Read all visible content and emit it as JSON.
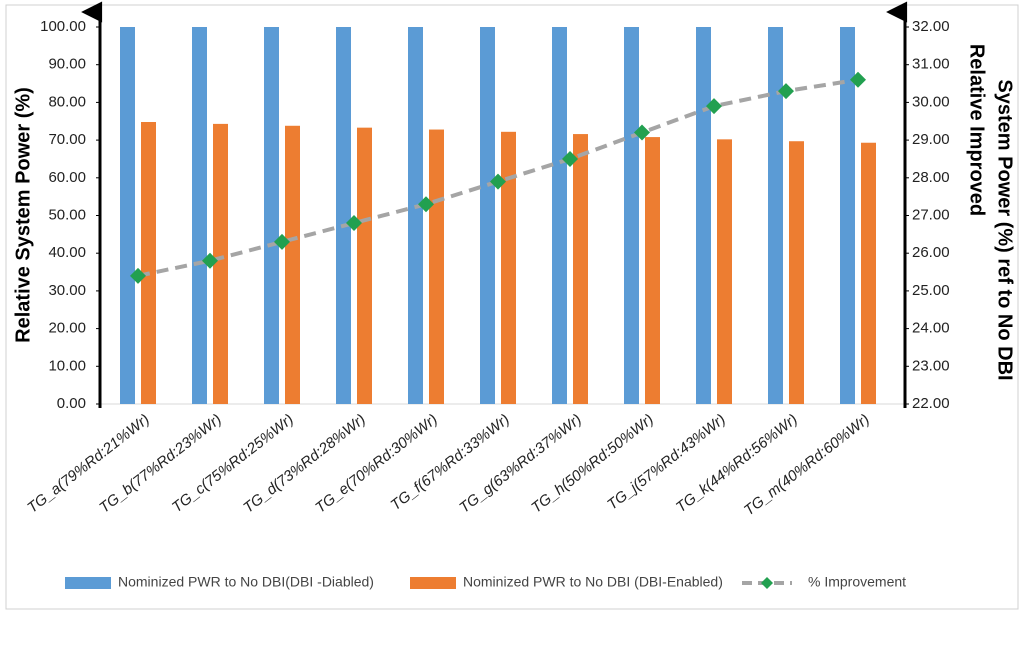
{
  "chart_data": {
    "type": "bar-line",
    "ylabel": "Relative System Power (%)",
    "y2label": [
      "Relative Improved",
      "System Power (%) ref to  No DBI"
    ],
    "categories": [
      "TG_a(79%Rd:21%Wr)",
      "TG_b(77%Rd:23%Wr)",
      "TG_c(75%Rd:25%Wr)",
      "TG_d(73%Rd:28%Wr)",
      "TG_e(70%Rd:30%Wr)",
      "TG_f(67%Rd:33%Wr)",
      "TG_g(63%Rd:37%Wr)",
      "TG_h(50%Rd:50%Wr)",
      "TG_j(57%Rd:43%Wr)",
      "TG_k(44%Rd:56%Wr)",
      "TG_m(40%Rd:60%Wr)"
    ],
    "series": [
      {
        "name": "Nominized PWR to No DBI(DBI -Diabled)",
        "type": "bar",
        "color": "#5b9bd5",
        "values": [
          100,
          100,
          100,
          100,
          100,
          100,
          100,
          100,
          100,
          100,
          100
        ]
      },
      {
        "name": "Nominized PWR to No DBI (DBI-Enabled)",
        "type": "bar",
        "color": "#ed7d31",
        "values": [
          74.8,
          74.3,
          73.8,
          73.3,
          72.8,
          72.2,
          71.6,
          70.8,
          70.2,
          69.7,
          69.3
        ]
      },
      {
        "name": "% Improvement",
        "type": "line",
        "axis": "y2",
        "color": "#a5a5a5",
        "marker_color": "#22a050",
        "values": [
          25.4,
          25.8,
          26.3,
          26.8,
          27.3,
          27.9,
          28.5,
          29.2,
          29.9,
          30.3,
          30.6
        ]
      }
    ],
    "ylim": [
      0,
      100
    ],
    "yticks": [
      {
        "value": 0,
        "label": "0.00"
      },
      {
        "value": 10,
        "label": "10.00"
      },
      {
        "value": 20,
        "label": "20.00"
      },
      {
        "value": 30,
        "label": "30.00"
      },
      {
        "value": 40,
        "label": "40.00"
      },
      {
        "value": 50,
        "label": "50.00"
      },
      {
        "value": 60,
        "label": "60.00"
      },
      {
        "value": 70,
        "label": "70.00"
      },
      {
        "value": 80,
        "label": "80.00"
      },
      {
        "value": 90,
        "label": "90.00"
      },
      {
        "value": 100,
        "label": "100.00"
      }
    ],
    "y2lim": [
      22,
      32
    ],
    "y2ticks": [
      {
        "value": 22,
        "label": "22.00"
      },
      {
        "value": 23,
        "label": "23.00"
      },
      {
        "value": 24,
        "label": "24.00"
      },
      {
        "value": 25,
        "label": "25.00"
      },
      {
        "value": 26,
        "label": "26.00"
      },
      {
        "value": 27,
        "label": "27.00"
      },
      {
        "value": 28,
        "label": "28.00"
      },
      {
        "value": 29,
        "label": "29.00"
      },
      {
        "value": 30,
        "label": "30.00"
      },
      {
        "value": 31,
        "label": "31.00"
      },
      {
        "value": 32,
        "label": "32.00"
      }
    ],
    "legend": "bottom"
  }
}
